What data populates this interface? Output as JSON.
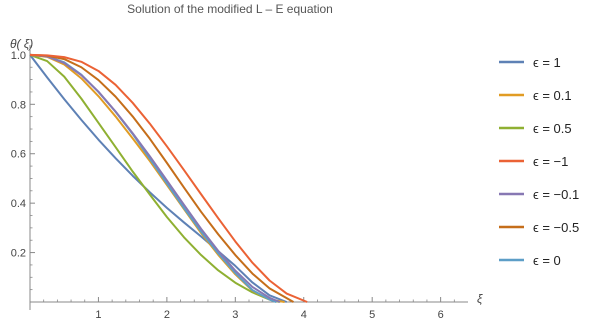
{
  "chart_data": {
    "type": "line",
    "title": "Solution   of  the  modified   L – E  equation",
    "xlabel": "ξ",
    "ylabel": "θ( ξ)",
    "xlim": [
      0,
      6.4
    ],
    "ylim": [
      0,
      1.04
    ],
    "x_ticks": [
      1,
      2,
      3,
      4,
      5,
      6
    ],
    "y_ticks": [
      0.2,
      0.4,
      0.6,
      0.8,
      1.0
    ],
    "y_tick_labels": [
      "0.2",
      "0.4",
      "0.6",
      "0.8",
      "1.0"
    ],
    "grid": false,
    "legend_position": "right",
    "series": [
      {
        "name": "ϵ = 1",
        "color": "#5e81b5",
        "x": [
          0,
          0.25,
          0.5,
          0.75,
          1.0,
          1.25,
          1.5,
          1.75,
          2.0,
          2.25,
          2.5,
          2.75,
          3.0,
          3.25,
          3.5,
          3.75
        ],
        "y": [
          1.0,
          0.909,
          0.821,
          0.737,
          0.657,
          0.582,
          0.511,
          0.444,
          0.381,
          0.322,
          0.265,
          0.206,
          0.146,
          0.079,
          0.027,
          0.0
        ]
      },
      {
        "name": "ϵ = 0.1",
        "color": "#e19c24",
        "x": [
          0,
          0.25,
          0.5,
          0.75,
          1.0,
          1.25,
          1.5,
          1.75,
          2.0,
          2.25,
          2.5,
          2.75,
          3.0,
          3.25,
          3.5,
          3.72
        ],
        "y": [
          1.0,
          0.992,
          0.961,
          0.905,
          0.833,
          0.751,
          0.662,
          0.571,
          0.474,
          0.376,
          0.279,
          0.191,
          0.112,
          0.046,
          0.01,
          0.0
        ]
      },
      {
        "name": "ϵ = 0.5",
        "color": "#8fb032",
        "x": [
          0,
          0.25,
          0.5,
          0.75,
          1.0,
          1.25,
          1.5,
          1.75,
          2.0,
          2.25,
          2.5,
          2.75,
          3.0,
          3.25,
          3.5,
          3.65
        ],
        "y": [
          1.0,
          0.975,
          0.912,
          0.823,
          0.725,
          0.627,
          0.528,
          0.435,
          0.344,
          0.262,
          0.19,
          0.128,
          0.078,
          0.039,
          0.01,
          0.0
        ]
      },
      {
        "name": "ϵ = −1",
        "color": "#eb6235",
        "x": [
          0,
          0.25,
          0.5,
          0.75,
          1.0,
          1.25,
          1.5,
          1.75,
          2.0,
          2.25,
          2.5,
          2.75,
          3.0,
          3.25,
          3.5,
          3.75,
          4.05
        ],
        "y": [
          1.0,
          0.998,
          0.991,
          0.972,
          0.935,
          0.879,
          0.806,
          0.722,
          0.63,
          0.534,
          0.436,
          0.339,
          0.245,
          0.159,
          0.087,
          0.034,
          0.0
        ]
      },
      {
        "name": "ϵ = −0.1",
        "color": "#8778b3",
        "x": [
          0,
          0.25,
          0.5,
          0.75,
          1.0,
          1.25,
          1.5,
          1.75,
          2.0,
          2.25,
          2.5,
          2.75,
          3.0,
          3.25,
          3.5,
          3.65
        ],
        "y": [
          1.0,
          0.994,
          0.967,
          0.918,
          0.851,
          0.771,
          0.683,
          0.59,
          0.492,
          0.393,
          0.296,
          0.207,
          0.127,
          0.061,
          0.017,
          0.0
        ]
      },
      {
        "name": "ϵ = −0.5",
        "color": "#c56e1a",
        "x": [
          0,
          0.25,
          0.5,
          0.75,
          1.0,
          1.25,
          1.5,
          1.75,
          2.0,
          2.25,
          2.5,
          2.75,
          3.0,
          3.25,
          3.5,
          3.85
        ],
        "y": [
          1.0,
          0.997,
          0.983,
          0.95,
          0.898,
          0.831,
          0.751,
          0.661,
          0.563,
          0.463,
          0.365,
          0.274,
          0.19,
          0.115,
          0.055,
          0.0
        ]
      },
      {
        "name": "ϵ = 0",
        "color": "#5d9ec7",
        "x": [
          0,
          0.25,
          0.5,
          0.75,
          1.0,
          1.25,
          1.5,
          1.75,
          2.0,
          2.25,
          2.5,
          2.75,
          3.0,
          3.25,
          3.5,
          3.6
        ],
        "y": [
          1.0,
          0.994,
          0.97,
          0.92,
          0.85,
          0.77,
          0.68,
          0.58,
          0.48,
          0.38,
          0.285,
          0.197,
          0.117,
          0.048,
          0.01,
          0.0
        ]
      }
    ]
  }
}
